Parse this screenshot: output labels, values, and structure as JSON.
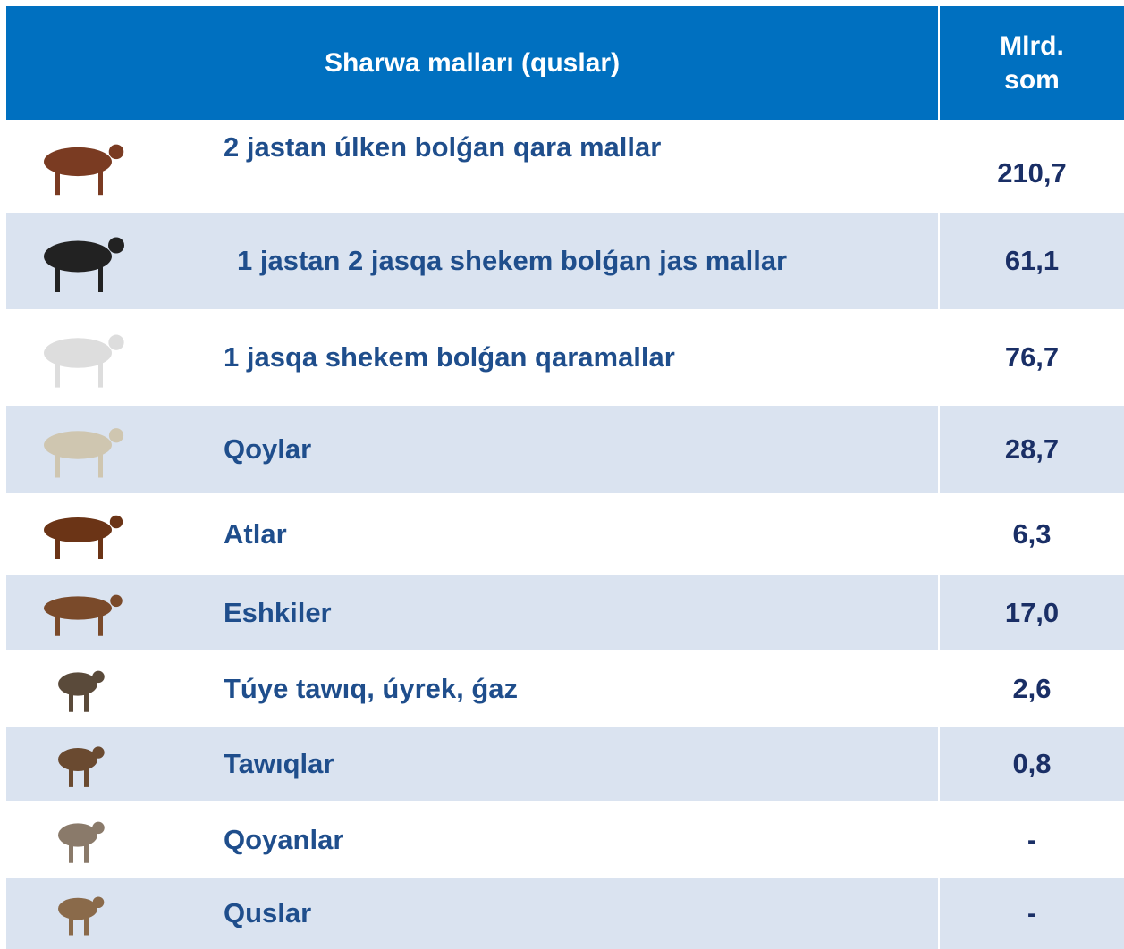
{
  "table": {
    "header": [
      "Sharwa malları (quslar)",
      "Mlrd. som"
    ],
    "rows": [
      [
        "2 jastan úlken bolǵan qara mallar",
        "210,7"
      ],
      [
        "1 jastan 2 jasqa shekem bolǵan jas mallar",
        "61,1"
      ],
      [
        "1 jasqa shekem bolǵan qaramallar",
        "76,7"
      ],
      [
        "Qoylar",
        "28,7"
      ],
      [
        "Atlar",
        "6,3"
      ],
      [
        "Eshkiler",
        "17,0"
      ],
      [
        "Túye tawıq, úyrek, ǵaz",
        "2,6"
      ],
      [
        "Tawıqlar",
        "0,8"
      ],
      [
        "Qoyanlar",
        "-"
      ],
      [
        "Quslar",
        "-"
      ]
    ]
  }
}
